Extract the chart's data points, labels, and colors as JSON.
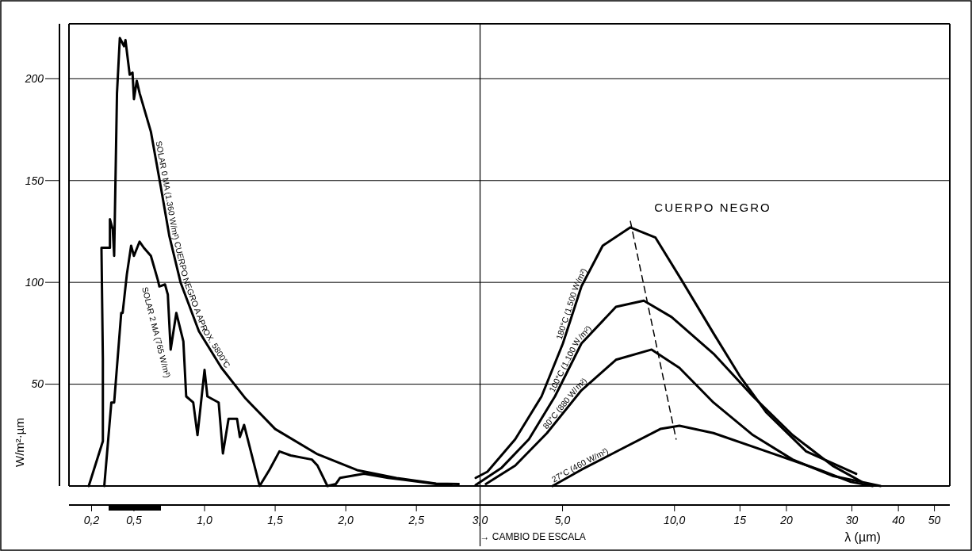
{
  "chart_data": [
    {
      "type": "line",
      "ylabel": "W/m²·µm",
      "xlim": [
        0.04,
        2.92
      ],
      "ylim": [
        0,
        227
      ],
      "xticks": [
        {
          "value": 0.2,
          "label": "0,2"
        },
        {
          "value": 0.5,
          "label": "0,5"
        },
        {
          "value": 1.0,
          "label": "1,0"
        },
        {
          "value": 1.5,
          "label": "1,5"
        },
        {
          "value": 2.0,
          "label": "2,0"
        },
        {
          "value": 2.5,
          "label": "2,5"
        }
      ],
      "yticks": [
        50,
        100,
        150,
        200
      ],
      "grid": "y",
      "line_style": "solid",
      "series": [
        {
          "name": "SOLAR 0 MA (1.360 W/m²) CUERPO NEGRO A APROX. 5800°C",
          "color": "#000000",
          "x": [
            0.18,
            0.28,
            0.28,
            0.27,
            0.33,
            0.33,
            0.35,
            0.36,
            0.38,
            0.4,
            0.43,
            0.44,
            0.47,
            0.49,
            0.5,
            0.52,
            0.54,
            0.62,
            0.69,
            0.75,
            0.83,
            0.96,
            1.12,
            1.29,
            1.5,
            1.8,
            2.08,
            2.36,
            2.64,
            2.8
          ],
          "values": [
            0,
            22,
            62,
            117,
            117,
            131,
            126,
            113,
            193,
            220,
            216,
            219,
            202,
            203,
            190,
            199,
            193,
            174,
            147,
            123,
            100,
            76,
            58,
            43,
            28,
            15.6,
            7.8,
            3.9,
            1.2,
            1
          ]
        },
        {
          "name": "SOLAR 2 MA (765 W/m²)",
          "color": "#000000",
          "x": [
            0.29,
            0.34,
            0.36,
            0.41,
            0.42,
            0.45,
            0.48,
            0.5,
            0.54,
            0.57,
            0.62,
            0.67,
            0.68,
            0.72,
            0.74,
            0.76,
            0.8,
            0.85,
            0.87,
            0.92,
            0.95,
            1.0,
            1.02,
            1.1,
            1.13,
            1.17,
            1.23,
            1.25,
            1.28,
            1.39,
            1.46,
            1.53,
            1.61,
            1.76,
            1.8,
            1.87,
            1.93,
            1.96,
            2.13,
            2.3,
            2.64,
            2.75
          ],
          "values": [
            0,
            41,
            41,
            85,
            85,
            104,
            118,
            113,
            120,
            117,
            113,
            101,
            98,
            99,
            94,
            67,
            85,
            71,
            44,
            41,
            25,
            57,
            44,
            41,
            16,
            33,
            33,
            24,
            30,
            0,
            8,
            17,
            15,
            13,
            10,
            0,
            1,
            4,
            6,
            4,
            1,
            1
          ]
        }
      ]
    },
    {
      "type": "line",
      "xlabel": "λ (µm)",
      "xlim": [
        2.92,
        55
      ],
      "ylim": [
        0,
        227
      ],
      "log": "x",
      "tick_labels": "x",
      "xticks": [
        {
          "value": 3.0,
          "label": "3,0"
        },
        {
          "value": 5.0,
          "label": "5,0"
        },
        {
          "value": 10.0,
          "label": "10,0"
        },
        {
          "value": 15,
          "label": "15"
        },
        {
          "value": 20,
          "label": "20"
        },
        {
          "value": 30,
          "label": "30"
        },
        {
          "value": 40,
          "label": "40"
        },
        {
          "value": 50,
          "label": "50"
        }
      ],
      "yticks": [
        50,
        100,
        150,
        200
      ],
      "grid": "y",
      "line_style": "solid",
      "series": [
        {
          "name": "180°C (1.500 W/m²)",
          "color": "#000000",
          "x": [
            2.92,
            3.14,
            3.73,
            4.39,
            5.01,
            5.62,
            6.41,
            7.61,
            8.89,
            10.46,
            12.73,
            14.98,
            17.68,
            22.6,
            30.8
          ],
          "values": [
            4,
            7,
            23,
            44,
            70,
            98,
            118,
            127,
            122,
            101,
            75,
            54,
            36,
            17,
            6
          ]
        },
        {
          "name": "100°C (1.100 W/m²)",
          "color": "#000000",
          "x": [
            2.92,
            3.43,
            4.06,
            4.77,
            5.62,
            6.96,
            8.27,
            9.82,
            12.73,
            16.26,
            20.78,
            26.6,
            31.9,
            35.8
          ],
          "values": [
            0.5,
            9,
            23,
            44,
            70,
            88,
            91,
            83,
            65,
            44,
            25,
            10,
            2,
            0
          ]
        },
        {
          "name": "80°C (880 W/m²)",
          "color": "#000000",
          "x": [
            3.11,
            3.73,
            4.54,
            5.62,
            6.96,
            8.68,
            10.31,
            12.73,
            16.26,
            20.78,
            26.6,
            31.9
          ],
          "values": [
            1,
            10,
            26,
            47,
            62,
            67,
            58,
            41,
            25,
            13,
            5,
            2
          ]
        },
        {
          "name": "27°C (460 W/m²)",
          "color": "#000000",
          "x": [
            4.7,
            5.62,
            7.17,
            9.16,
            10.31,
            12.73,
            17.68,
            24.5,
            29.8,
            34.1
          ],
          "values": [
            0,
            8,
            18,
            28,
            29.6,
            26,
            17,
            8,
            2,
            0
          ]
        },
        {
          "type": "line",
          "line_style": "dashed",
          "color": "#000000",
          "x": [
            7.61,
            10.1
          ],
          "values": [
            130,
            23
          ]
        }
      ],
      "ref_lines": [
        {
          "axis": "x",
          "value": 3.0,
          "label": "→ CAMBIO DE ESCALA",
          "color": "#000000"
        }
      ],
      "annotations": [
        "CUERPO NEGRO"
      ]
    }
  ]
}
